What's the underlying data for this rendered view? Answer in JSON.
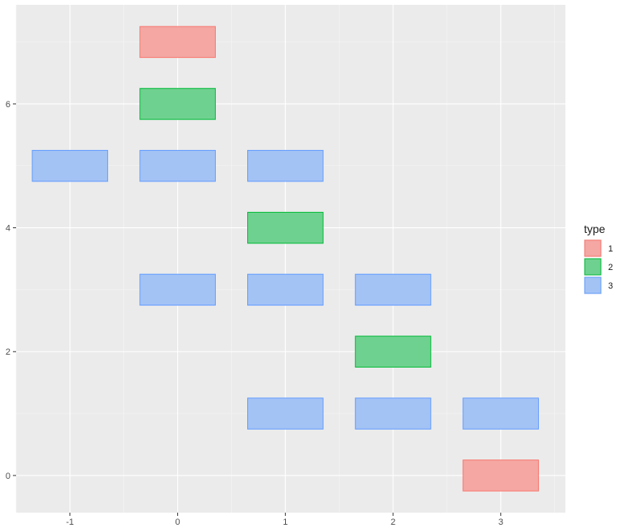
{
  "chart_data": {
    "type": "tile",
    "panel_background": "#ebebeb",
    "grid": true,
    "x_ticks": [
      -1,
      0,
      1,
      2,
      3
    ],
    "y_ticks": [
      0,
      2,
      4,
      6
    ],
    "x_tick_labels": [
      "-1",
      "0",
      "1",
      "2",
      "3"
    ],
    "y_tick_labels": [
      "0",
      "2",
      "4",
      "6"
    ],
    "xlim": [
      -1.5,
      3.6
    ],
    "ylim": [
      -0.6,
      7.6
    ],
    "tile_width": 0.7,
    "tile_height": 0.5,
    "legend": {
      "title": "type",
      "placement": "right",
      "entries": [
        {
          "label": "1",
          "fill": "#f4a7a3",
          "stroke": "#f8766d"
        },
        {
          "label": "2",
          "fill": "#6fd18f",
          "stroke": "#00ba38"
        },
        {
          "label": "3",
          "fill": "#a4c3f5",
          "stroke": "#619cff"
        }
      ]
    },
    "tiles": [
      {
        "x": 0,
        "y": 7,
        "type": "1"
      },
      {
        "x": 0,
        "y": 6,
        "type": "2"
      },
      {
        "x": -1,
        "y": 5,
        "type": "3"
      },
      {
        "x": 0,
        "y": 5,
        "type": "3"
      },
      {
        "x": 1,
        "y": 5,
        "type": "3"
      },
      {
        "x": 1,
        "y": 4,
        "type": "2"
      },
      {
        "x": 0,
        "y": 3,
        "type": "3"
      },
      {
        "x": 1,
        "y": 3,
        "type": "3"
      },
      {
        "x": 2,
        "y": 3,
        "type": "3"
      },
      {
        "x": 2,
        "y": 2,
        "type": "2"
      },
      {
        "x": 1,
        "y": 1,
        "type": "3"
      },
      {
        "x": 2,
        "y": 1,
        "type": "3"
      },
      {
        "x": 3,
        "y": 1,
        "type": "3"
      },
      {
        "x": 3,
        "y": 0,
        "type": "1"
      }
    ]
  }
}
